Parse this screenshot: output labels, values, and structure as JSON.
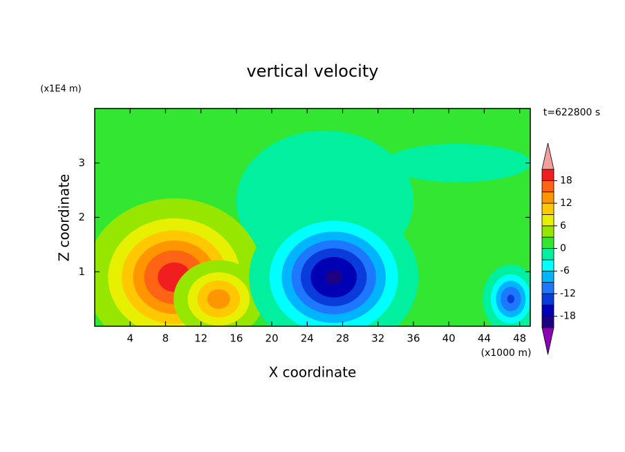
{
  "chart_data": {
    "type": "contour",
    "title": "vertical velocity",
    "xlabel": "X coordinate",
    "ylabel": "Z coordinate",
    "x_unit": "(x1000 m)",
    "y_unit": "(x1E4 m)",
    "time_label": "t=622800 s",
    "xlim": [
      0,
      49.2
    ],
    "xticks": [
      4,
      8,
      12,
      16,
      20,
      24,
      28,
      32,
      36,
      40,
      44,
      48
    ],
    "ylim": [
      0,
      4
    ],
    "yticks": [
      1,
      2,
      3
    ],
    "levels": [
      -21,
      -18,
      -15,
      -12,
      -9,
      -6,
      -3,
      0,
      3,
      6,
      9,
      12,
      15,
      18,
      21
    ],
    "colors": [
      "#8c00b4",
      "#1e0082",
      "#0000b4",
      "#0a3cdc",
      "#1e78ff",
      "#00b4ff",
      "#00ffff",
      "#00f0a0",
      "#32e632",
      "#96e600",
      "#e6f000",
      "#ffc800",
      "#ff9600",
      "#ff6414",
      "#f01e1e",
      "#f5a0a0"
    ],
    "colorbar_ticks": [
      -18,
      -12,
      -6,
      0,
      6,
      12,
      18
    ],
    "base_value": 1.5,
    "blobs": [
      {
        "x": 26,
        "z": 2.3,
        "sx": 8.5,
        "sz": 1.1,
        "value": -3
      },
      {
        "x": 41,
        "z": 3.0,
        "sx": 7,
        "sz": 0.3,
        "value": -3
      },
      {
        "x": 9,
        "z": 0.9,
        "sx": 4.5,
        "sz": 0.65,
        "value": 18
      },
      {
        "x": 14,
        "z": 0.5,
        "sx": 2.5,
        "sz": 0.35,
        "value": 12
      },
      {
        "x": 27,
        "z": 0.9,
        "sx": 4.2,
        "sz": 0.6,
        "value": -20
      },
      {
        "x": 47,
        "z": 0.5,
        "sx": 1.5,
        "sz": 0.3,
        "value": -14
      }
    ]
  }
}
